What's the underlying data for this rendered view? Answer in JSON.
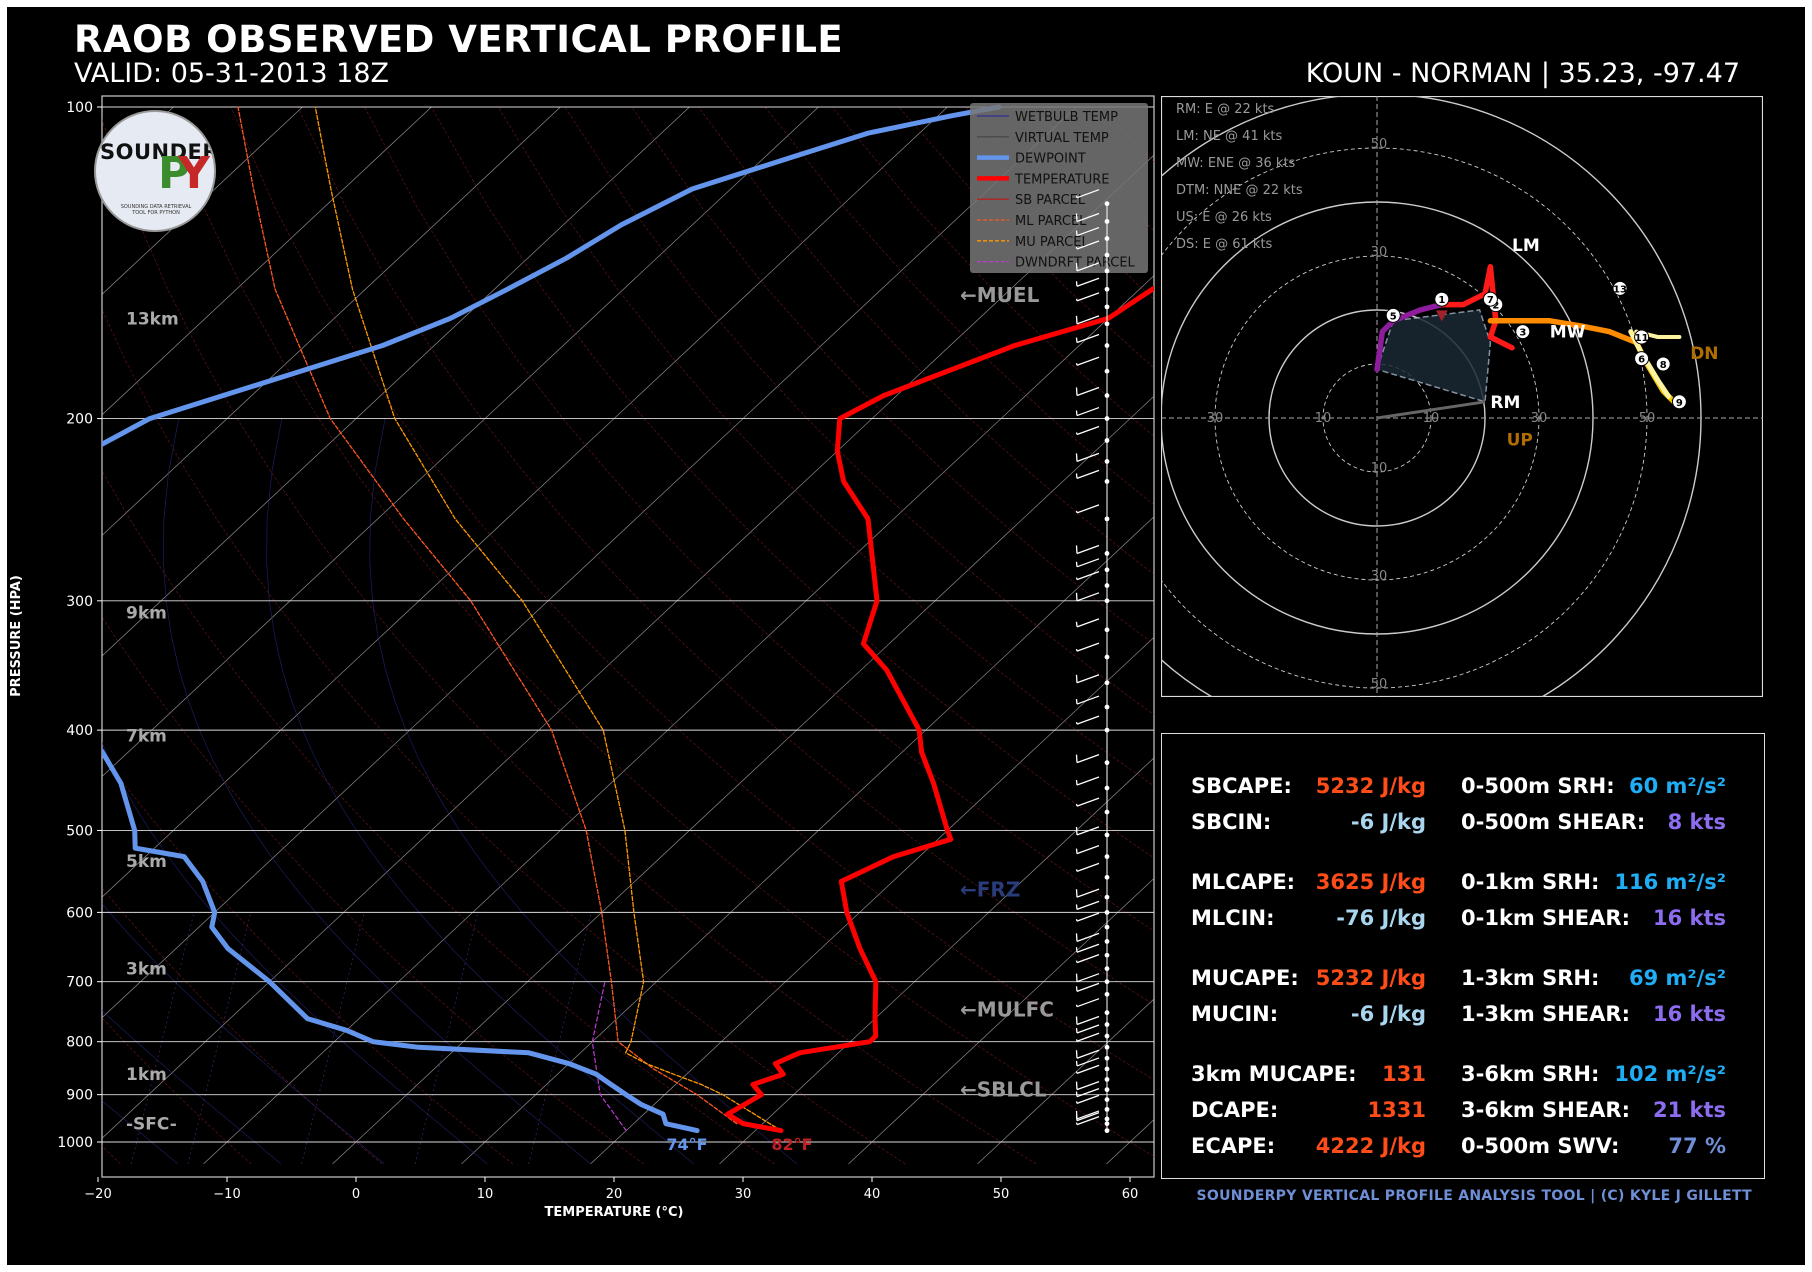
{
  "header": {
    "title": "RAOB OBSERVED VERTICAL PROFILE",
    "valid": "VALID: 05-31-2013 18Z",
    "station": "KOUN - NORMAN | 35.23, -97.47"
  },
  "logo": {
    "line1": "SOUNDER",
    "p": "P",
    "y": "Y",
    "tagline": "SOUNDING DATA RETRIEVAL TOOL FOR PYTHON"
  },
  "colors": {
    "temperature": "#ff0000",
    "dewpoint": "#6495ed",
    "mu_parcel": "#ff9900",
    "ml_parcel": "#ff5722",
    "cape": "#ff4d1a",
    "cin": "#a9d6ee",
    "srh": "#1faef5",
    "shear": "#8c6cf0",
    "swv": "#6f8fd6"
  },
  "chart_data": {
    "type": "skewt",
    "xlabel": "TEMPERATURE (°C)",
    "ylabel": "PRESSURE (HPA)",
    "xlim": [
      -22,
      62
    ],
    "ylim": [
      1050,
      100
    ],
    "x_ticks": [
      "−20",
      "−10",
      "0",
      "10",
      "20",
      "30",
      "40",
      "50",
      "60"
    ],
    "x_tick_values": [
      -20,
      -10,
      0,
      10,
      20,
      30,
      40,
      50,
      60
    ],
    "p_ticks": [
      "100",
      "200",
      "300",
      "400",
      "500",
      "600",
      "700",
      "800",
      "900",
      "1000"
    ],
    "p_tick_values": [
      100,
      200,
      300,
      400,
      500,
      600,
      700,
      800,
      900,
      1000
    ],
    "legend": [
      "WETBULB TEMP",
      "VIRTUAL TEMP",
      "DEWPOINT",
      "TEMPERATURE",
      "SB PARCEL",
      "ML PARCEL",
      "MU PARCEL",
      "DWNDRFT PARCEL"
    ],
    "height_labels": [
      {
        "label": "13km",
        "p": 160
      },
      {
        "label": "9km",
        "p": 308
      },
      {
        "label": "7km",
        "p": 405
      },
      {
        "label": "5km",
        "p": 535
      },
      {
        "label": "3km",
        "p": 680
      },
      {
        "label": "1km",
        "p": 860
      },
      {
        "label": "-SFC-",
        "p": 960
      }
    ],
    "level_markers": [
      {
        "label": "←MUEL",
        "p": 152
      },
      {
        "label": "←FRZ",
        "p": 570
      },
      {
        "label": "←MULFC",
        "p": 745
      },
      {
        "label": "←SBLCL",
        "p": 890
      }
    ],
    "surface_labels": {
      "dewpoint": "74°F",
      "temperature": "82°F"
    },
    "temperature": [
      [
        975,
        32
      ],
      [
        960,
        28.5
      ],
      [
        940,
        26.5
      ],
      [
        920,
        27
      ],
      [
        900,
        27.5
      ],
      [
        880,
        26
      ],
      [
        860,
        27.5
      ],
      [
        840,
        26
      ],
      [
        820,
        27
      ],
      [
        800,
        31.5
      ],
      [
        790,
        31.5
      ],
      [
        760,
        30
      ],
      [
        700,
        27
      ],
      [
        650,
        23
      ],
      [
        600,
        19
      ],
      [
        560,
        16
      ],
      [
        530,
        18
      ],
      [
        510,
        21
      ],
      [
        500,
        20
      ],
      [
        450,
        15
      ],
      [
        420,
        11.5
      ],
      [
        400,
        9.5
      ],
      [
        350,
        2
      ],
      [
        330,
        -2
      ],
      [
        300,
        -4.5
      ],
      [
        250,
        -12
      ],
      [
        230,
        -17
      ],
      [
        215,
        -20
      ],
      [
        200,
        -22.5
      ],
      [
        190,
        -21
      ],
      [
        170,
        -15
      ],
      [
        160,
        -10
      ],
      [
        150,
        -9
      ],
      [
        140,
        -7
      ],
      [
        130,
        -6
      ],
      [
        122,
        -6
      ],
      [
        115,
        -4
      ],
      [
        110,
        -4.5
      ],
      [
        105,
        -4
      ],
      [
        100,
        -4
      ]
    ],
    "dewpoint": [
      [
        975,
        25.5
      ],
      [
        960,
        22.5
      ],
      [
        940,
        21.5
      ],
      [
        920,
        19
      ],
      [
        900,
        17
      ],
      [
        880,
        15
      ],
      [
        860,
        13
      ],
      [
        840,
        10
      ],
      [
        820,
        6
      ],
      [
        810,
        -3
      ],
      [
        800,
        -7
      ],
      [
        780,
        -10
      ],
      [
        760,
        -14
      ],
      [
        700,
        -20
      ],
      [
        650,
        -26
      ],
      [
        620,
        -29
      ],
      [
        600,
        -30
      ],
      [
        560,
        -33.5
      ],
      [
        530,
        -37
      ],
      [
        520,
        -41.5
      ],
      [
        500,
        -43
      ],
      [
        450,
        -48
      ],
      [
        420,
        -52
      ],
      [
        400,
        -55
      ],
      [
        360,
        -61
      ],
      [
        320,
        -69
      ],
      [
        300,
        -71
      ],
      [
        280,
        -75
      ],
      [
        250,
        -80
      ],
      [
        230,
        -79
      ],
      [
        215,
        -78
      ],
      [
        200,
        -76
      ],
      [
        170,
        -64
      ],
      [
        160,
        -61
      ],
      [
        150,
        -59
      ],
      [
        140,
        -57
      ],
      [
        130,
        -55.5
      ],
      [
        120,
        -53
      ],
      [
        112,
        -48
      ],
      [
        106,
        -44
      ],
      [
        102,
        -39
      ],
      [
        100,
        -36
      ]
    ],
    "mu_parcel": [
      [
        975,
        32
      ],
      [
        900,
        24.5
      ],
      [
        880,
        22
      ],
      [
        860,
        19
      ],
      [
        840,
        16
      ],
      [
        820,
        13.5
      ],
      [
        800,
        13
      ],
      [
        700,
        9
      ],
      [
        600,
        2.5
      ],
      [
        500,
        -5
      ],
      [
        400,
        -15
      ],
      [
        300,
        -32
      ],
      [
        250,
        -44
      ],
      [
        200,
        -57
      ],
      [
        150,
        -71
      ],
      [
        120,
        -81
      ],
      [
        100,
        -89
      ]
    ],
    "ml_parcel": [
      [
        960,
        28
      ],
      [
        900,
        22.5
      ],
      [
        850,
        17
      ],
      [
        800,
        12
      ],
      [
        700,
        6.5
      ],
      [
        600,
        0
      ],
      [
        500,
        -8
      ],
      [
        400,
        -19
      ],
      [
        300,
        -36
      ],
      [
        250,
        -48
      ],
      [
        200,
        -62
      ],
      [
        150,
        -77
      ],
      [
        120,
        -87
      ],
      [
        100,
        -95
      ]
    ],
    "dwn_parcel": [
      [
        975,
        20
      ],
      [
        900,
        15
      ],
      [
        800,
        10
      ],
      [
        700,
        6
      ]
    ],
    "wind_barbs_p": [
      975,
      960,
      950,
      930,
      910,
      890,
      870,
      850,
      830,
      810,
      790,
      770,
      750,
      720,
      700,
      680,
      660,
      640,
      620,
      600,
      580,
      555,
      530,
      505,
      480,
      455,
      430,
      400,
      380,
      360,
      340,
      320,
      300,
      290,
      280,
      270,
      250,
      230,
      220,
      210,
      200,
      190,
      180,
      170,
      162,
      156,
      150,
      144,
      139,
      134,
      129,
      124
    ],
    "hodograph": {
      "range_rings": [
        "10",
        "30",
        "50"
      ],
      "labels": {
        "LM": "LM",
        "RM": "RM",
        "MW": "MW",
        "DN": "DN",
        "UP": "UP"
      },
      "storm_motion": [
        "RM: E @ 22 kts",
        "LM: NE @ 41 kts",
        "MW: ENE @ 36 kts",
        "DTM: NNE @ 22 kts",
        "US: E @ 26 kts",
        "DS: E @ 61 kts"
      ],
      "height_markers": [
        "1",
        "2",
        "3",
        "5",
        "6",
        "7",
        "8",
        "9",
        "11",
        "13"
      ]
    }
  },
  "parameters": [
    {
      "l_label": "SBCAPE:",
      "l_val": "5232 J/kg",
      "l_col": "cape",
      "r_label": "0-500m SRH:",
      "r_val": "60 m²/s²",
      "r_col": "srh"
    },
    {
      "l_label": "SBCIN:",
      "l_val": "-6 J/kg",
      "l_col": "cin",
      "r_label": "0-500m SHEAR:",
      "r_val": "8 kts",
      "r_col": "shear"
    },
    {
      "l_label": "MLCAPE:",
      "l_val": "3625 J/kg",
      "l_col": "cape",
      "r_label": "0-1km SRH:",
      "r_val": "116 m²/s²",
      "r_col": "srh"
    },
    {
      "l_label": "MLCIN:",
      "l_val": "-76 J/kg",
      "l_col": "cin",
      "r_label": "0-1km SHEAR:",
      "r_val": "16 kts",
      "r_col": "shear"
    },
    {
      "l_label": "MUCAPE:",
      "l_val": "5232 J/kg",
      "l_col": "cape",
      "r_label": "1-3km SRH:",
      "r_val": "69 m²/s²",
      "r_col": "srh"
    },
    {
      "l_label": "MUCIN:",
      "l_val": "-6 J/kg",
      "l_col": "cin",
      "r_label": "1-3km SHEAR:",
      "r_val": "16 kts",
      "r_col": "shear"
    },
    {
      "l_label": "3km MUCAPE:",
      "l_val": "131",
      "l_col": "cape",
      "r_label": "3-6km SRH:",
      "r_val": "102 m²/s²",
      "r_col": "srh"
    },
    {
      "l_label": "DCAPE:",
      "l_val": "1331",
      "l_col": "cape",
      "r_label": "3-6km SHEAR:",
      "r_val": "21 kts",
      "r_col": "shear"
    },
    {
      "l_label": "ECAPE:",
      "l_val": "4222 J/kg",
      "l_col": "cape",
      "r_label": "0-500m SWV:",
      "r_val": "77 %",
      "r_col": "swv"
    }
  ],
  "footer": "SOUNDERPY VERTICAL PROFILE ANALYSIS TOOL | (C) KYLE J GILLETT"
}
